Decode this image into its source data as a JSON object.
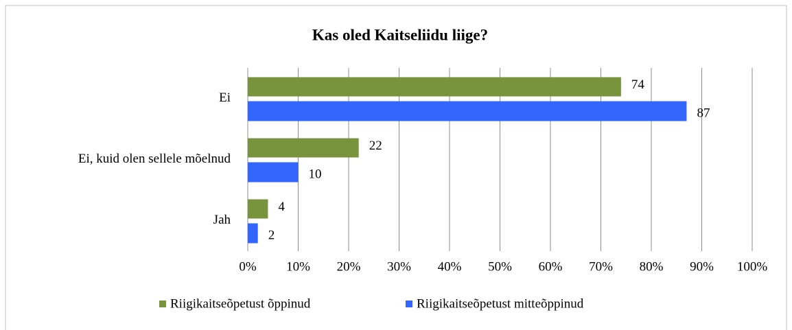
{
  "chart_data": {
    "type": "bar",
    "orientation": "horizontal",
    "title": "Kas oled Kaitseliidu liige?",
    "categories": [
      "Ei",
      "Ei, kuid olen sellele mõelnud",
      "Jah"
    ],
    "series": [
      {
        "name": "Riigikaitseõpetust õppinud",
        "color": "#77933c",
        "values": [
          74,
          22,
          4
        ]
      },
      {
        "name": "Riigikaitseõpetust mitteõppinud",
        "color": "#3366ff",
        "values": [
          87,
          10,
          2
        ]
      }
    ],
    "xlim": [
      0,
      100
    ],
    "xticks": [
      {
        "value": 0,
        "label": "0%"
      },
      {
        "value": 10,
        "label": "10%"
      },
      {
        "value": 20,
        "label": "20%"
      },
      {
        "value": 30,
        "label": "30%"
      },
      {
        "value": 40,
        "label": "40%"
      },
      {
        "value": 50,
        "label": "50%"
      },
      {
        "value": 60,
        "label": "60%"
      },
      {
        "value": 70,
        "label": "70%"
      },
      {
        "value": 80,
        "label": "80%"
      },
      {
        "value": 90,
        "label": "90%"
      },
      {
        "value": 100,
        "label": "100%"
      }
    ],
    "grid": true,
    "legend": "bottom"
  }
}
